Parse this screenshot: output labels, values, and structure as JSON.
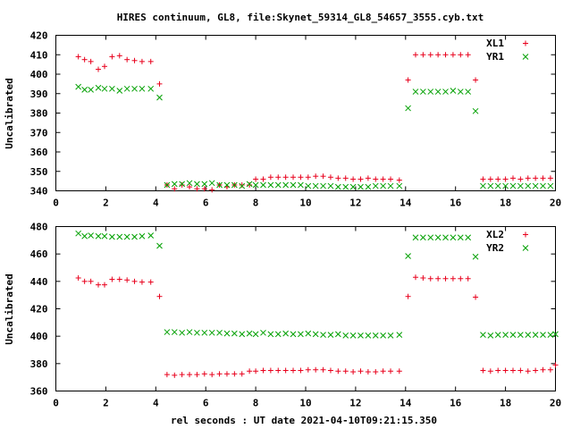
{
  "title": "HIRES continuum, GL8, file:Skynet_59314_GL8_54657_3555.cyb.txt",
  "xlabel": "rel seconds : UT date 2021-04-10T09:21:15.350",
  "chart_data": [
    {
      "type": "scatter",
      "ylabel": "Uncalibrated",
      "xlim": [
        0,
        20
      ],
      "ylim": [
        340,
        420
      ],
      "xticks": [
        "0",
        "2",
        "4",
        "6",
        "8",
        "10",
        "12",
        "14",
        "16",
        "18",
        "20"
      ],
      "yticks": [
        "340",
        "350",
        "360",
        "370",
        "380",
        "390",
        "400",
        "410",
        "420"
      ],
      "legend_position": "top-right",
      "grid": false,
      "series": [
        {
          "name": "XL1",
          "marker": "plus",
          "color": "#e8001c",
          "points": [
            [
              0.9,
              409
            ],
            [
              1.15,
              407.5
            ],
            [
              1.4,
              406.5
            ],
            [
              1.7,
              402.5
            ],
            [
              1.95,
              404
            ],
            [
              2.25,
              409
            ],
            [
              2.55,
              409.5
            ],
            [
              2.85,
              407.5
            ],
            [
              3.15,
              407
            ],
            [
              3.45,
              406.5
            ],
            [
              3.8,
              406.5
            ],
            [
              4.15,
              395
            ],
            [
              4.45,
              343
            ],
            [
              4.75,
              341
            ],
            [
              5.05,
              343
            ],
            [
              5.35,
              342
            ],
            [
              5.65,
              341
            ],
            [
              5.95,
              341
            ],
            [
              6.25,
              340.5
            ],
            [
              6.55,
              343
            ],
            [
              6.85,
              342
            ],
            [
              7.15,
              343
            ],
            [
              7.45,
              343
            ],
            [
              7.75,
              343
            ],
            [
              8.0,
              346
            ],
            [
              8.3,
              346
            ],
            [
              8.6,
              347
            ],
            [
              8.9,
              347
            ],
            [
              9.2,
              347
            ],
            [
              9.5,
              347
            ],
            [
              9.8,
              347
            ],
            [
              10.1,
              347
            ],
            [
              10.4,
              347.5
            ],
            [
              10.7,
              347.5
            ],
            [
              11.0,
              347
            ],
            [
              11.3,
              346.5
            ],
            [
              11.6,
              346.5
            ],
            [
              11.9,
              346
            ],
            [
              12.2,
              346
            ],
            [
              12.5,
              346.5
            ],
            [
              12.8,
              346
            ],
            [
              13.1,
              346
            ],
            [
              13.4,
              346
            ],
            [
              13.75,
              345.5
            ],
            [
              14.1,
              397
            ],
            [
              14.4,
              410
            ],
            [
              14.7,
              410
            ],
            [
              15.0,
              410
            ],
            [
              15.3,
              410
            ],
            [
              15.6,
              410
            ],
            [
              15.9,
              410
            ],
            [
              16.2,
              410
            ],
            [
              16.5,
              410
            ],
            [
              16.8,
              397
            ],
            [
              17.1,
              346
            ],
            [
              17.4,
              346
            ],
            [
              17.7,
              346
            ],
            [
              18.0,
              346
            ],
            [
              18.3,
              346.5
            ],
            [
              18.6,
              346
            ],
            [
              18.9,
              346.5
            ],
            [
              19.2,
              346.5
            ],
            [
              19.5,
              346.5
            ],
            [
              19.8,
              346.5
            ]
          ]
        },
        {
          "name": "YR1",
          "marker": "cross",
          "color": "#00a000",
          "points": [
            [
              0.9,
              393.5
            ],
            [
              1.15,
              392
            ],
            [
              1.4,
              392
            ],
            [
              1.7,
              393
            ],
            [
              1.95,
              392.5
            ],
            [
              2.25,
              392.5
            ],
            [
              2.55,
              391.5
            ],
            [
              2.85,
              392.5
            ],
            [
              3.15,
              392.5
            ],
            [
              3.45,
              392.5
            ],
            [
              3.8,
              392.5
            ],
            [
              4.15,
              388
            ],
            [
              4.45,
              343
            ],
            [
              4.75,
              343.5
            ],
            [
              5.05,
              343.5
            ],
            [
              5.35,
              344
            ],
            [
              5.65,
              343.5
            ],
            [
              5.95,
              343.5
            ],
            [
              6.25,
              344
            ],
            [
              6.55,
              343
            ],
            [
              6.85,
              343
            ],
            [
              7.15,
              343
            ],
            [
              7.45,
              342.5
            ],
            [
              7.75,
              343.5
            ],
            [
              8.0,
              343
            ],
            [
              8.3,
              343
            ],
            [
              8.6,
              343
            ],
            [
              8.9,
              343
            ],
            [
              9.2,
              343
            ],
            [
              9.5,
              343
            ],
            [
              9.8,
              343
            ],
            [
              10.1,
              342.5
            ],
            [
              10.4,
              342.5
            ],
            [
              10.7,
              342.5
            ],
            [
              11.0,
              342.5
            ],
            [
              11.3,
              342
            ],
            [
              11.6,
              342
            ],
            [
              11.9,
              342
            ],
            [
              12.2,
              342
            ],
            [
              12.5,
              342
            ],
            [
              12.8,
              342.5
            ],
            [
              13.1,
              342.5
            ],
            [
              13.4,
              342.5
            ],
            [
              13.75,
              342.5
            ],
            [
              14.1,
              382.5
            ],
            [
              14.4,
              391
            ],
            [
              14.7,
              391
            ],
            [
              15.0,
              391
            ],
            [
              15.3,
              391
            ],
            [
              15.6,
              391
            ],
            [
              15.9,
              391.5
            ],
            [
              16.2,
              391
            ],
            [
              16.5,
              391
            ],
            [
              16.8,
              381
            ],
            [
              17.1,
              342.5
            ],
            [
              17.4,
              342.5
            ],
            [
              17.7,
              342.5
            ],
            [
              18.0,
              342.5
            ],
            [
              18.3,
              342.5
            ],
            [
              18.6,
              342.5
            ],
            [
              18.9,
              342.5
            ],
            [
              19.2,
              342.5
            ],
            [
              19.5,
              342.5
            ],
            [
              19.8,
              342.5
            ]
          ]
        }
      ]
    },
    {
      "type": "scatter",
      "ylabel": "Uncalibrated",
      "xlim": [
        0,
        20
      ],
      "ylim": [
        360,
        480
      ],
      "xticks": [
        "0",
        "2",
        "4",
        "6",
        "8",
        "10",
        "12",
        "14",
        "16",
        "18",
        "20"
      ],
      "yticks": [
        "360",
        "380",
        "400",
        "420",
        "440",
        "460",
        "480"
      ],
      "legend_position": "top-right",
      "grid": false,
      "series": [
        {
          "name": "XL2",
          "marker": "plus",
          "color": "#e8001c",
          "points": [
            [
              0.9,
              442.5
            ],
            [
              1.15,
              440
            ],
            [
              1.4,
              440
            ],
            [
              1.7,
              437.5
            ],
            [
              1.95,
              437.5
            ],
            [
              2.25,
              441.5
            ],
            [
              2.55,
              441.5
            ],
            [
              2.85,
              441
            ],
            [
              3.15,
              440
            ],
            [
              3.45,
              439.5
            ],
            [
              3.8,
              439.5
            ],
            [
              4.15,
              429
            ],
            [
              4.45,
              372
            ],
            [
              4.75,
              371.5
            ],
            [
              5.05,
              372
            ],
            [
              5.35,
              372
            ],
            [
              5.65,
              372
            ],
            [
              5.95,
              372.5
            ],
            [
              6.25,
              372
            ],
            [
              6.55,
              372.5
            ],
            [
              6.85,
              372.5
            ],
            [
              7.15,
              372.5
            ],
            [
              7.45,
              372.5
            ],
            [
              7.75,
              374.5
            ],
            [
              8.0,
              374.5
            ],
            [
              8.3,
              375
            ],
            [
              8.6,
              375
            ],
            [
              8.9,
              375
            ],
            [
              9.2,
              375
            ],
            [
              9.5,
              375
            ],
            [
              9.8,
              375
            ],
            [
              10.1,
              375.5
            ],
            [
              10.4,
              375.5
            ],
            [
              10.7,
              375.5
            ],
            [
              11.0,
              375
            ],
            [
              11.3,
              374.5
            ],
            [
              11.6,
              374.5
            ],
            [
              11.9,
              374
            ],
            [
              12.2,
              374.5
            ],
            [
              12.5,
              374
            ],
            [
              12.8,
              374
            ],
            [
              13.1,
              374.5
            ],
            [
              13.4,
              374.5
            ],
            [
              13.75,
              374.5
            ],
            [
              14.1,
              429
            ],
            [
              14.4,
              443
            ],
            [
              14.7,
              442.5
            ],
            [
              15.0,
              442
            ],
            [
              15.3,
              442
            ],
            [
              15.6,
              442
            ],
            [
              15.9,
              442
            ],
            [
              16.2,
              442
            ],
            [
              16.5,
              442
            ],
            [
              16.8,
              428.5
            ],
            [
              17.1,
              375
            ],
            [
              17.4,
              374.5
            ],
            [
              17.7,
              375
            ],
            [
              18.0,
              375
            ],
            [
              18.3,
              375
            ],
            [
              18.6,
              375
            ],
            [
              18.9,
              374.5
            ],
            [
              19.2,
              375
            ],
            [
              19.5,
              375.5
            ],
            [
              19.8,
              375.5
            ],
            [
              20.0,
              379
            ]
          ]
        },
        {
          "name": "YR2",
          "marker": "cross",
          "color": "#00a000",
          "points": [
            [
              0.9,
              475
            ],
            [
              1.15,
              473
            ],
            [
              1.4,
              473.5
            ],
            [
              1.7,
              473
            ],
            [
              1.95,
              473
            ],
            [
              2.25,
              472.5
            ],
            [
              2.55,
              472.5
            ],
            [
              2.85,
              472.5
            ],
            [
              3.15,
              472.5
            ],
            [
              3.45,
              473
            ],
            [
              3.8,
              473.5
            ],
            [
              4.15,
              466
            ],
            [
              4.45,
              403
            ],
            [
              4.75,
              403
            ],
            [
              5.05,
              402.5
            ],
            [
              5.35,
              403
            ],
            [
              5.65,
              402.5
            ],
            [
              5.95,
              402.5
            ],
            [
              6.25,
              402.5
            ],
            [
              6.55,
              402.5
            ],
            [
              6.85,
              402
            ],
            [
              7.15,
              402
            ],
            [
              7.45,
              401.5
            ],
            [
              7.75,
              402
            ],
            [
              8.0,
              401.5
            ],
            [
              8.3,
              402.5
            ],
            [
              8.6,
              401.5
            ],
            [
              8.9,
              401.5
            ],
            [
              9.2,
              402
            ],
            [
              9.5,
              401.5
            ],
            [
              9.8,
              401.5
            ],
            [
              10.1,
              402
            ],
            [
              10.4,
              401.5
            ],
            [
              10.7,
              401
            ],
            [
              11.0,
              401
            ],
            [
              11.3,
              401.5
            ],
            [
              11.6,
              400.5
            ],
            [
              11.9,
              400.5
            ],
            [
              12.2,
              400.5
            ],
            [
              12.5,
              400.5
            ],
            [
              12.8,
              400.5
            ],
            [
              13.1,
              400.5
            ],
            [
              13.4,
              400.5
            ],
            [
              13.75,
              401
            ],
            [
              14.1,
              458.5
            ],
            [
              14.4,
              472
            ],
            [
              14.7,
              472
            ],
            [
              15.0,
              472
            ],
            [
              15.3,
              472
            ],
            [
              15.6,
              472
            ],
            [
              15.9,
              472
            ],
            [
              16.2,
              472
            ],
            [
              16.5,
              472
            ],
            [
              16.8,
              458
            ],
            [
              17.1,
              401
            ],
            [
              17.4,
              400.5
            ],
            [
              17.7,
              401
            ],
            [
              18.0,
              401
            ],
            [
              18.3,
              401
            ],
            [
              18.6,
              401
            ],
            [
              18.9,
              401
            ],
            [
              19.2,
              401
            ],
            [
              19.5,
              401
            ],
            [
              19.8,
              401
            ],
            [
              20.0,
              401.5
            ]
          ]
        }
      ]
    }
  ]
}
